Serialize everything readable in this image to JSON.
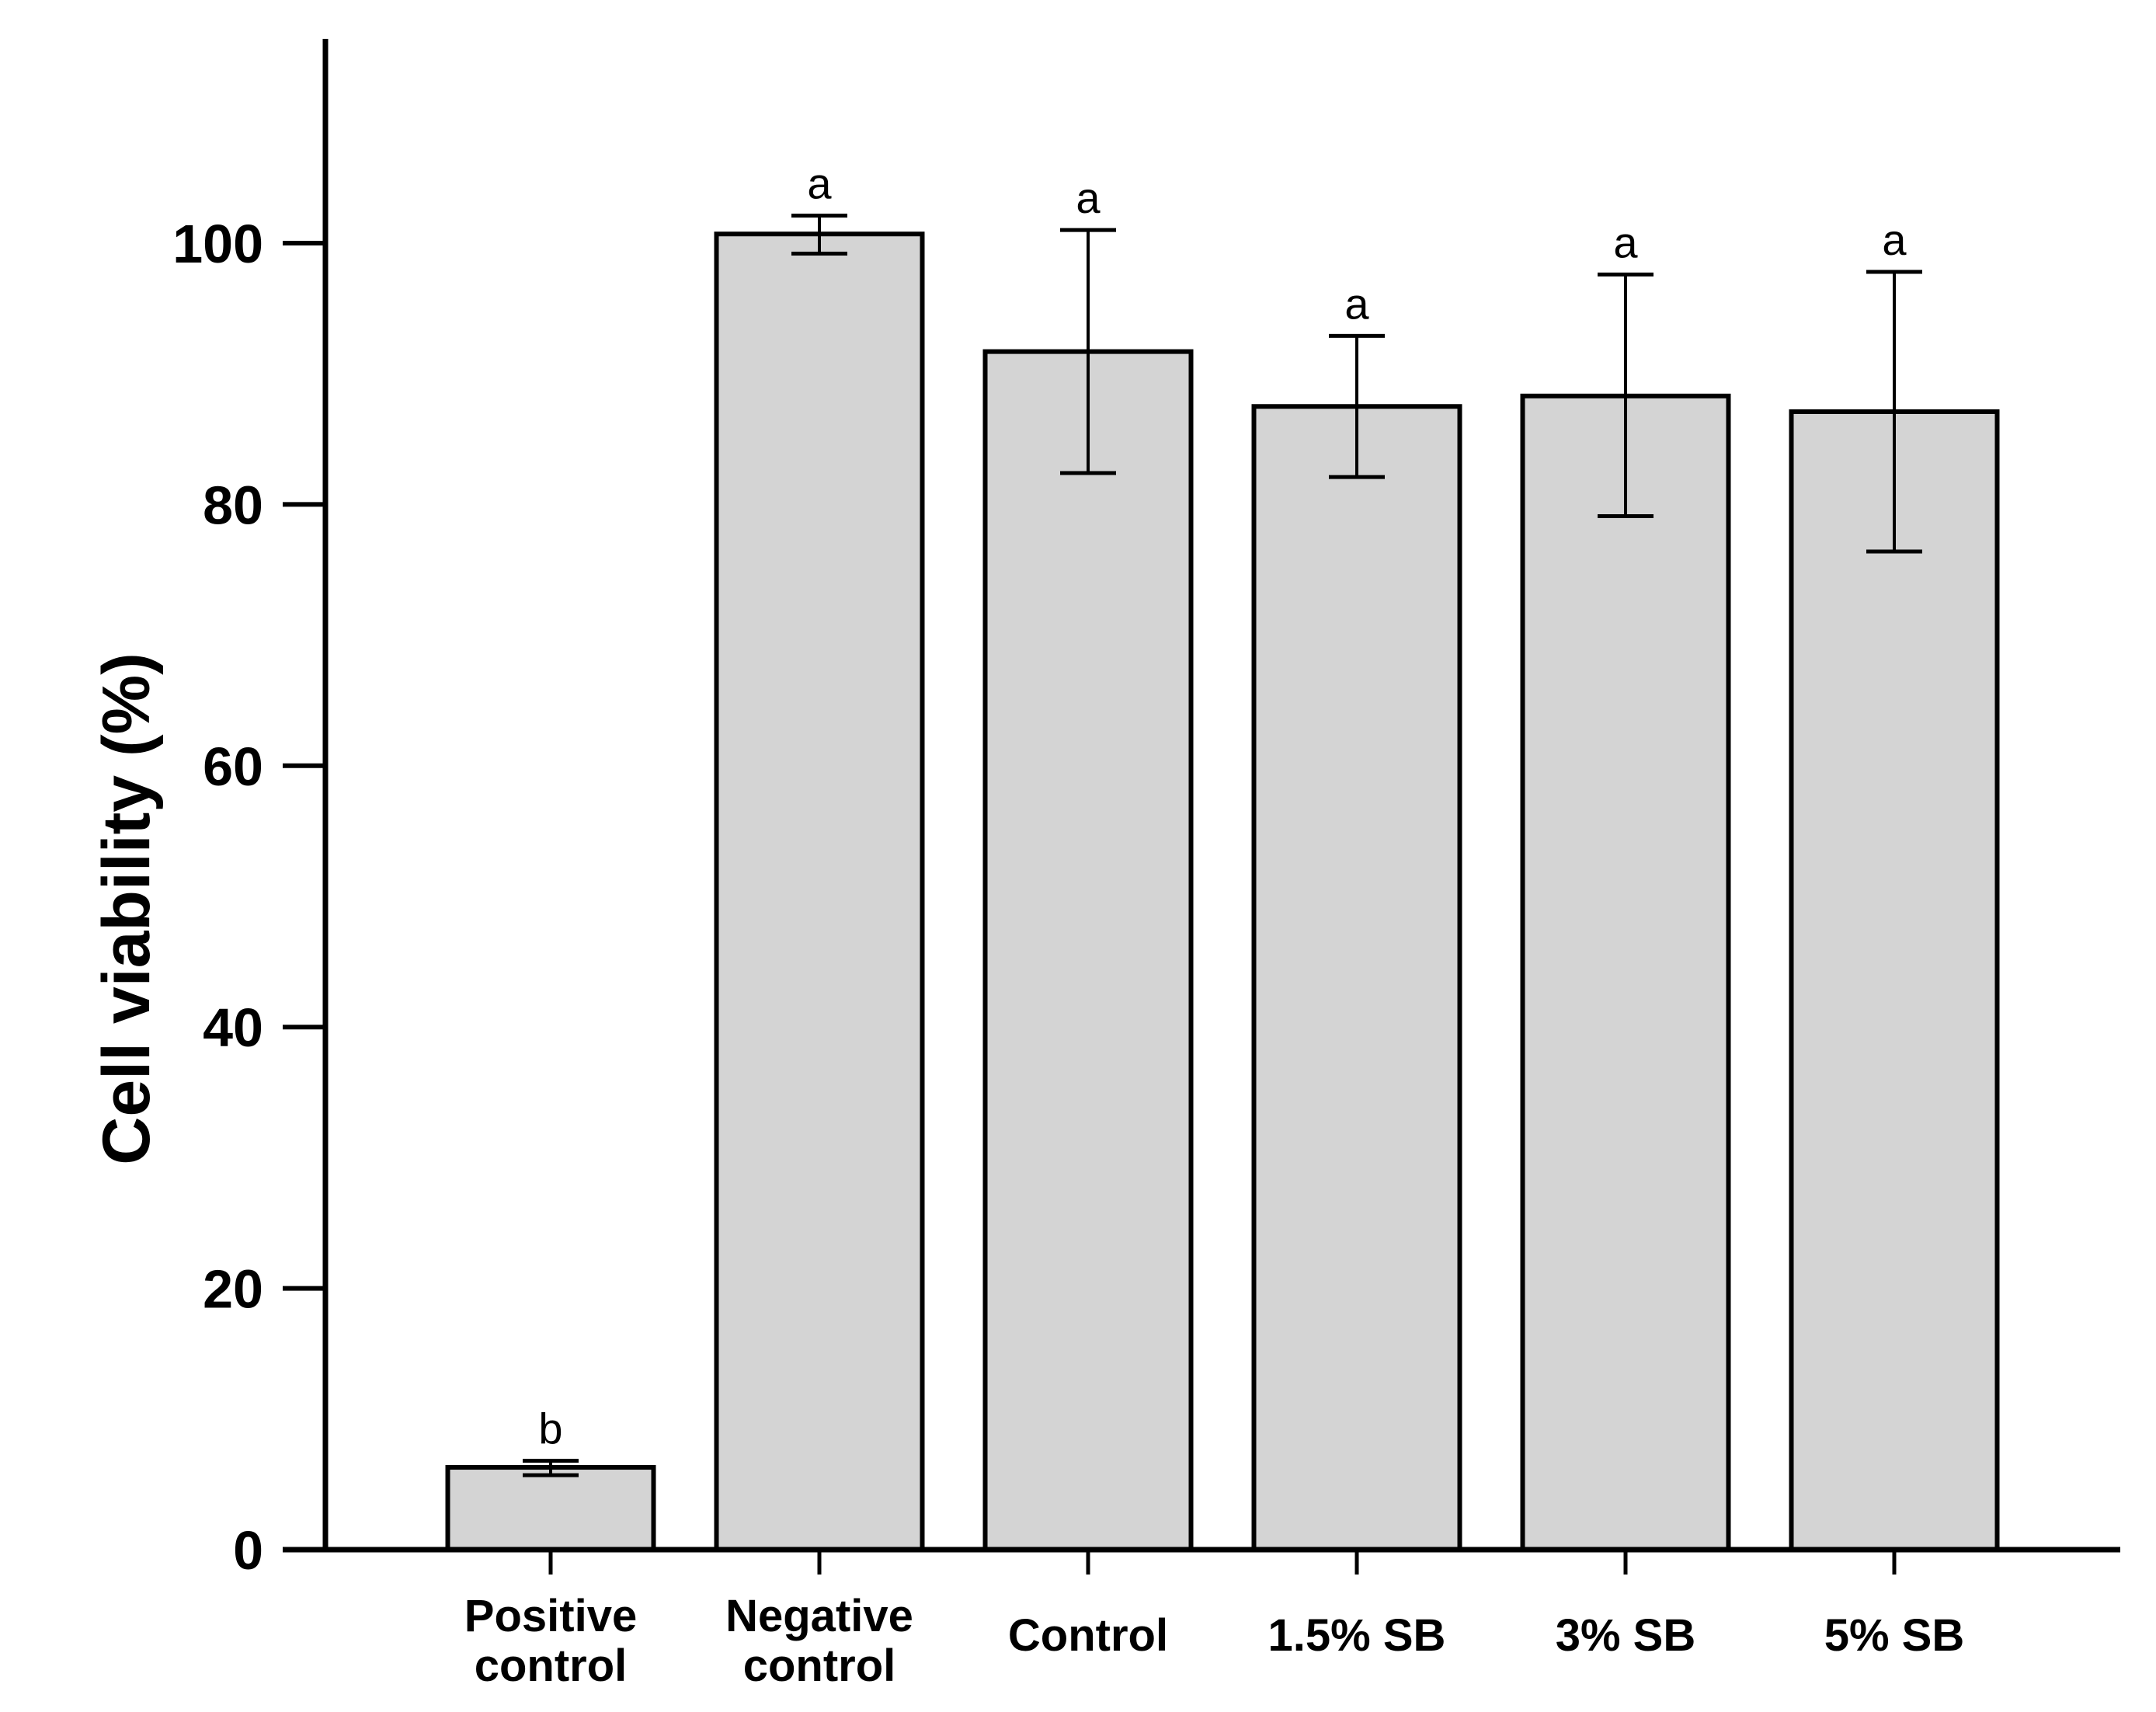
{
  "chart_data": {
    "type": "bar",
    "categories": [
      [
        "Positive",
        "control"
      ],
      [
        "Negative",
        "control"
      ],
      [
        "Control"
      ],
      [
        "1.5% SB"
      ],
      [
        "3% SB"
      ],
      [
        "5% SB"
      ]
    ],
    "values": [
      6.3,
      100.7,
      91.7,
      87.5,
      88.3,
      87.1
    ],
    "error_upper": [
      6.8,
      102.1,
      101.0,
      92.9,
      97.6,
      97.8
    ],
    "error_lower": [
      5.7,
      99.2,
      82.4,
      82.1,
      79.1,
      76.4
    ],
    "significance": [
      "b",
      "a",
      "a",
      "a",
      "a",
      "a"
    ],
    "ylabel": "Cell viability (%)",
    "xlabel": "",
    "yticks": [
      0,
      20,
      40,
      60,
      80,
      100
    ],
    "ylim": [
      0,
      115
    ],
    "bar_color": "#d4d4d4",
    "grid": false
  }
}
